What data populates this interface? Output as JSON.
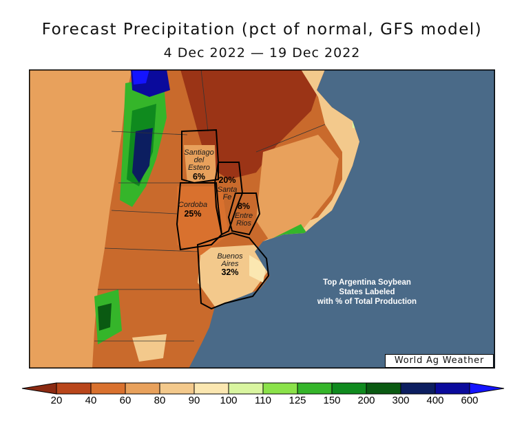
{
  "title": "Forecast Precipitation (pct of normal, GFS model)",
  "subtitle": "4 Dec 2022 — 19 Dec 2022",
  "credit": "World Ag Weather",
  "annotation": [
    "Top Argentina Soybean",
    "States Labeled",
    "with % of Total Production"
  ],
  "states": [
    {
      "name_lines": [
        "Santiago",
        "del",
        "Estero"
      ],
      "pct": "6%"
    },
    {
      "name_lines": [
        "Santa",
        "Fe"
      ],
      "pct": "20%"
    },
    {
      "name_lines": [
        "Cordoba"
      ],
      "pct": "25%"
    },
    {
      "name_lines": [
        "Entre",
        "Rios"
      ],
      "pct": "8%"
    },
    {
      "name_lines": [
        "Buenos",
        "Aires"
      ],
      "pct": "32%"
    }
  ],
  "legend": {
    "ticks": [
      "20",
      "40",
      "60",
      "80",
      "90",
      "100",
      "110",
      "125",
      "150",
      "200",
      "300",
      "400",
      "600"
    ],
    "colors": [
      "#8b2a12",
      "#b9461b",
      "#d9712e",
      "#e8a15c",
      "#f3c98c",
      "#fbe7b1",
      "#d9f5a0",
      "#8be24a",
      "#35b52a",
      "#0f8a1e",
      "#0a5a12",
      "#0c1e60",
      "#0a0a9c",
      "#1414ff"
    ]
  },
  "colors": {
    "ocean": "#4a6a88",
    "border": "#000000"
  }
}
